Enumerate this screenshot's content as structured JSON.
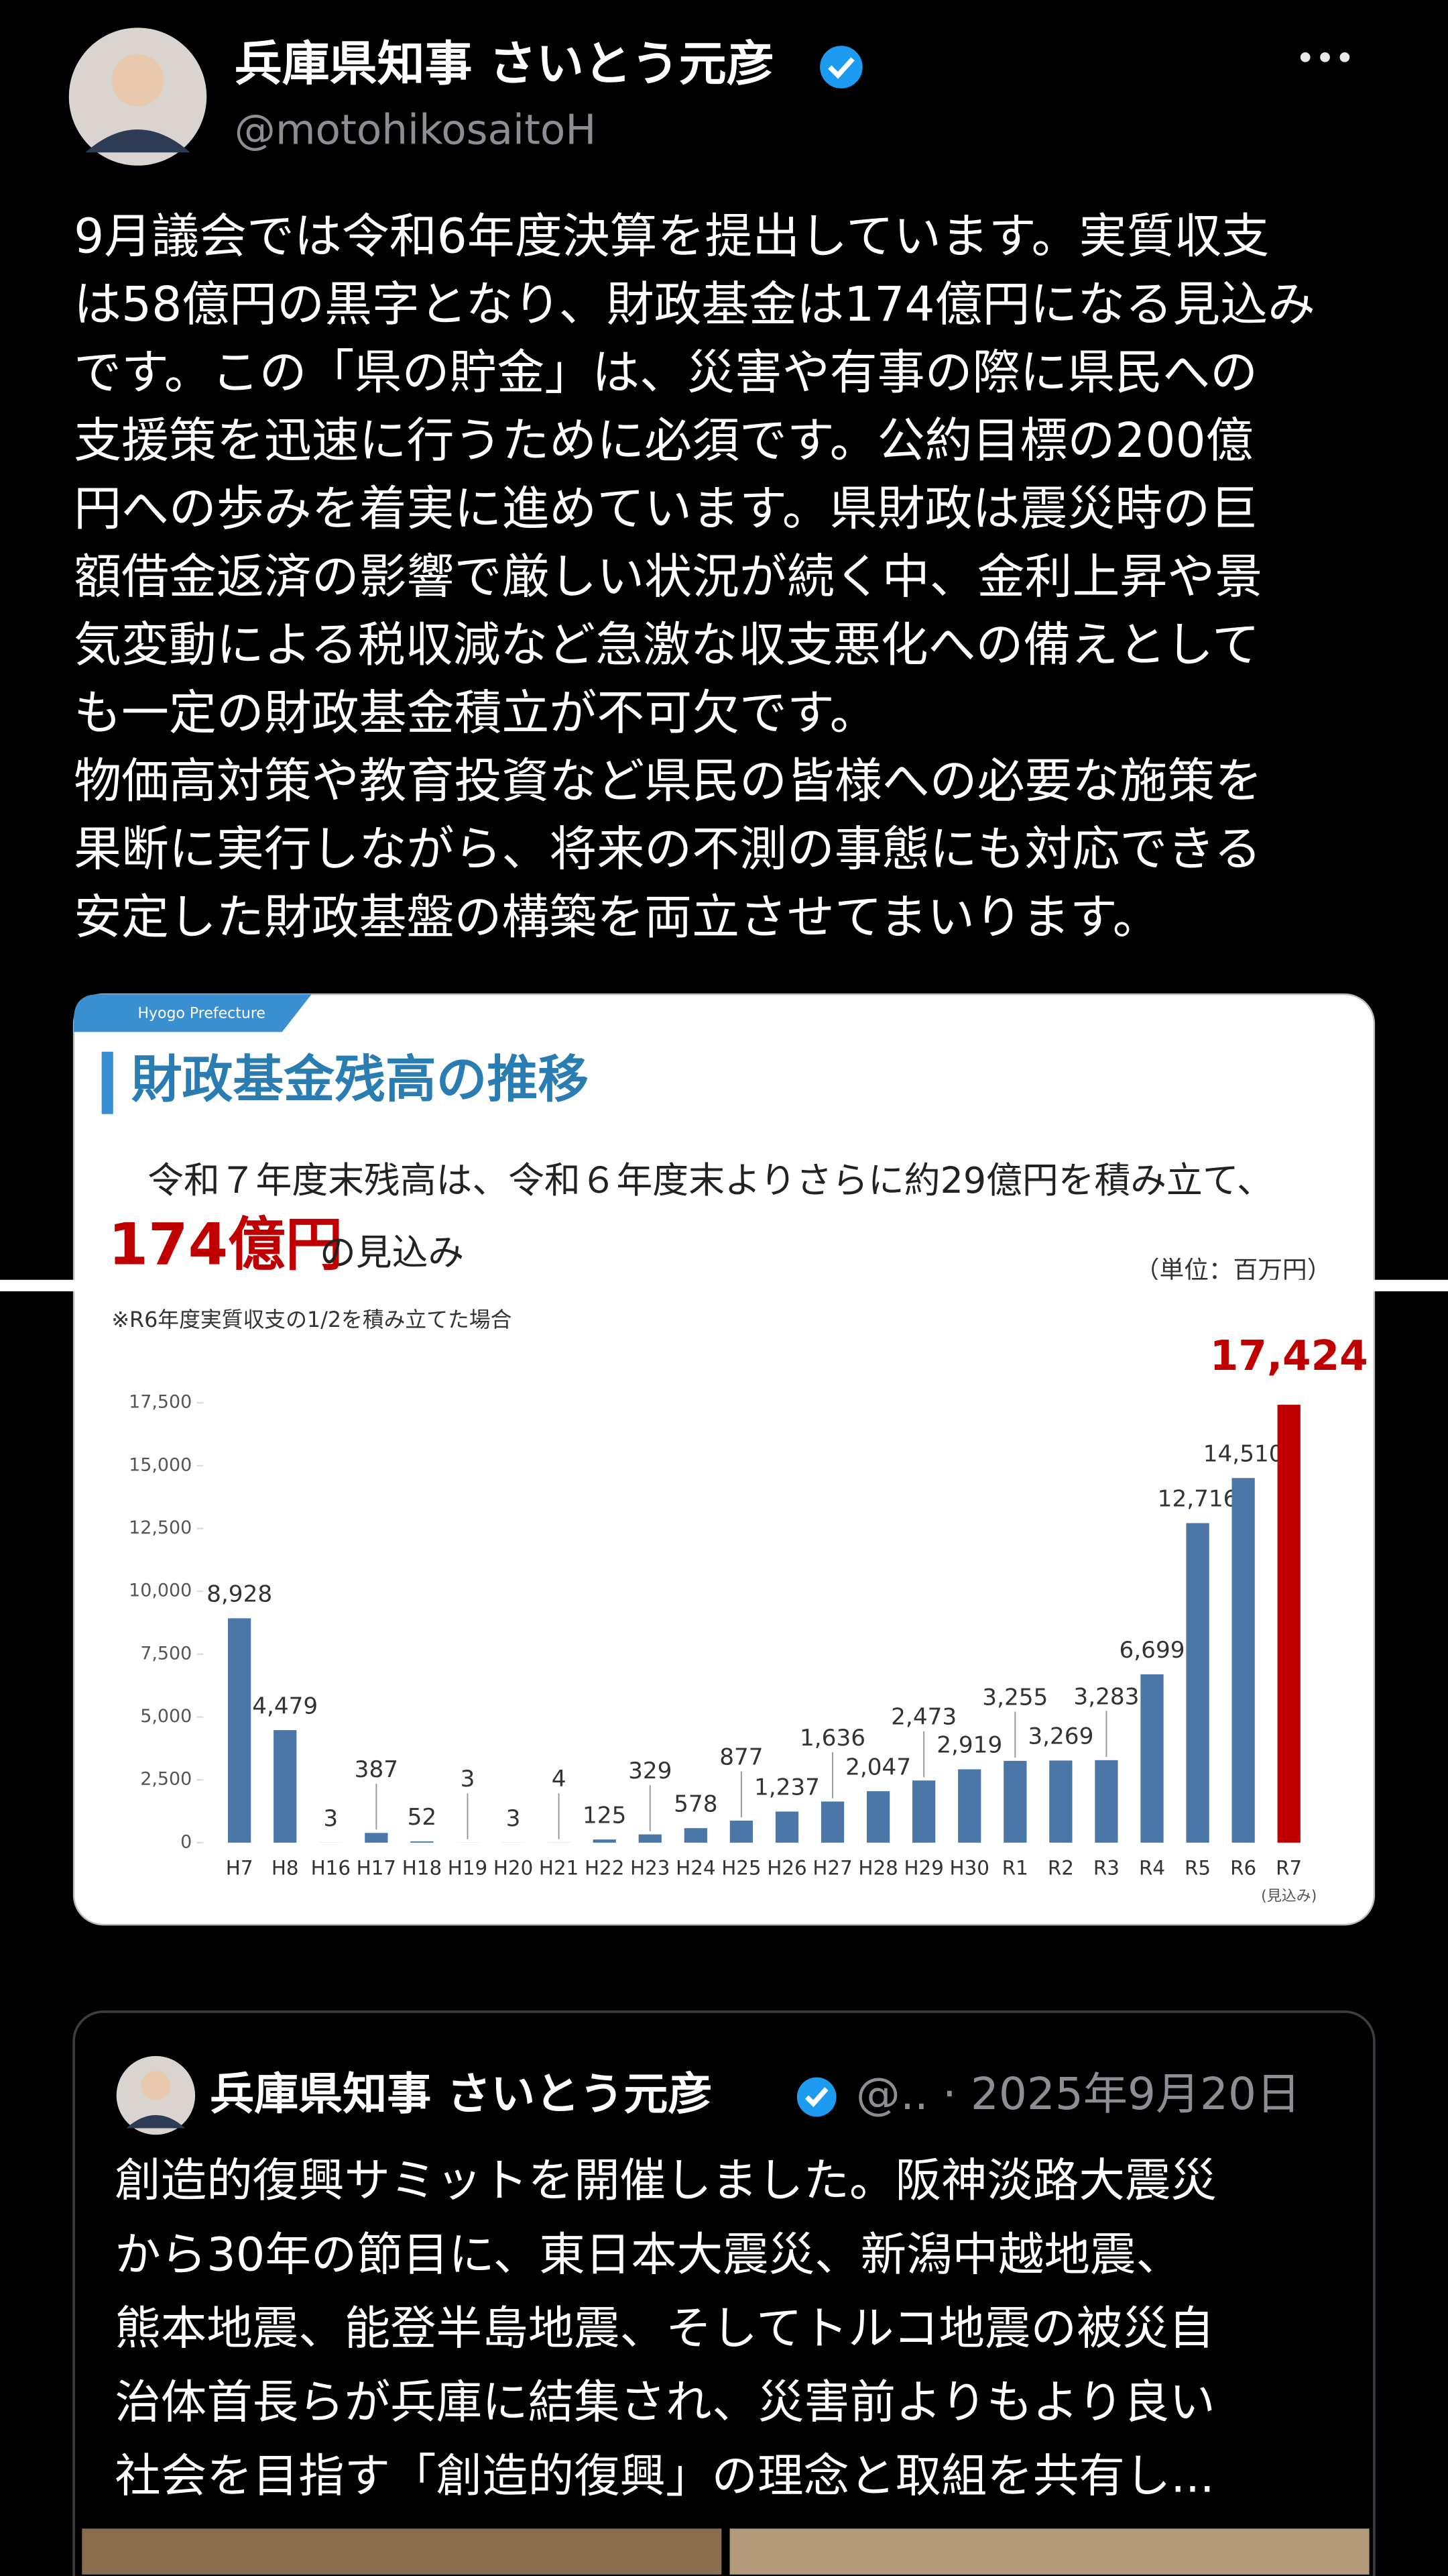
{
  "tweet": {
    "name": "兵庫県知事 さいとう元彦",
    "handle": "@motohikosaitoH",
    "body": [
      "9月議会では令和6年度決算を提出しています。実質収支",
      "は58億円の黒字となり、財政基金は174億円になる見込み",
      "です。この「県の貯金」は、災害や有事の際に県民への",
      "支援策を迅速に行うために必須です。公約目標の200億",
      "円への歩みを着実に進めています。県財政は震災時の巨",
      "額借金返済の影響で厳しい状況が続く中、金利上昇や景",
      "気変動による税収減など急激な収支悪化への備えとして",
      "も一定の財政基金積立が不可欠です。",
      "物価高対策や教育投資など県民の皆様への必要な施策を",
      "果断に実行しながら、将来の不測の事態にも対応できる",
      "安定した財政基盤の構築を両立させてまいります。"
    ]
  },
  "chart": {
    "type": "bar",
    "tag": "Hyogo Prefecture",
    "title": "財政基金残高の推移",
    "subtitle": "令和７年度末残高は、令和６年度末よりさらに約29億円を積み立て、",
    "headline": "174億円",
    "headline_suffix": "の見込み",
    "unit": "（単位：百万円）",
    "footnote": "※R6年度実質収支の1/2を積み立てた場合",
    "categories": [
      "H7",
      "H8",
      "H16",
      "H17",
      "H18",
      "H19",
      "H20",
      "H21",
      "H22",
      "H23",
      "H24",
      "H25",
      "H26",
      "H27",
      "H28",
      "H29",
      "H30",
      "R1",
      "R2",
      "R3",
      "R4",
      "R5",
      "R6",
      "R7"
    ],
    "values": [
      8928,
      4479,
      3,
      387,
      52,
      3,
      3,
      4,
      125,
      329,
      578,
      877,
      1237,
      1636,
      2047,
      2473,
      2919,
      3255,
      3269,
      3283,
      6699,
      12716,
      14510,
      17424
    ],
    "value_labels": [
      "8,928",
      "4,479",
      "3",
      "387",
      "52",
      "3",
      "3",
      "4",
      "125",
      "329",
      "578",
      "877",
      "1,237",
      "1,636",
      "2,047",
      "2,473",
      "2,919",
      "3,255",
      "3,269",
      "3,283",
      "6,699",
      "12,716",
      "14,510",
      "17,424"
    ],
    "colors": [
      "#4a76a8",
      "#4a76a8",
      "#4a76a8",
      "#4a76a8",
      "#4a76a8",
      "#4a76a8",
      "#4a76a8",
      "#4a76a8",
      "#4a76a8",
      "#4a76a8",
      "#4a76a8",
      "#4a76a8",
      "#4a76a8",
      "#4a76a8",
      "#4a76a8",
      "#4a76a8",
      "#4a76a8",
      "#4a76a8",
      "#4a76a8",
      "#4a76a8",
      "#4a76a8",
      "#4a76a8",
      "#4a76a8",
      "#c00000"
    ],
    "last_note": "(見込み)",
    "ylim": [
      0,
      17500
    ],
    "yticks": [
      0,
      {
        "value": 2500,
        "label": "2,500"
      },
      {
        "value": 5000,
        "label": "5,000"
      },
      {
        "value": 7500,
        "label": "7,500"
      },
      {
        "value": 10000,
        "label": "10,000"
      },
      {
        "value": 12500,
        "label": "12,500"
      },
      {
        "value": 15000,
        "label": "15,000"
      },
      {
        "value": 17500,
        "label": "17,500"
      }
    ]
  },
  "quote": {
    "name": "兵庫県知事 さいとう元彦",
    "handle_date": "@.. · 2025年9月20日",
    "body": [
      "創造的復興サミットを開催しました。阪神淡路大震災",
      "から30年の節目に、東日本大震災、新潟中越地震、",
      "熊本地震、能登半島地震、そしてトルコ地震の被災自",
      "治体首長らが兵庫に結集され、災害前よりもより良い",
      "社会を目指す「創造的復興」の理念と取組を共有し..."
    ]
  }
}
